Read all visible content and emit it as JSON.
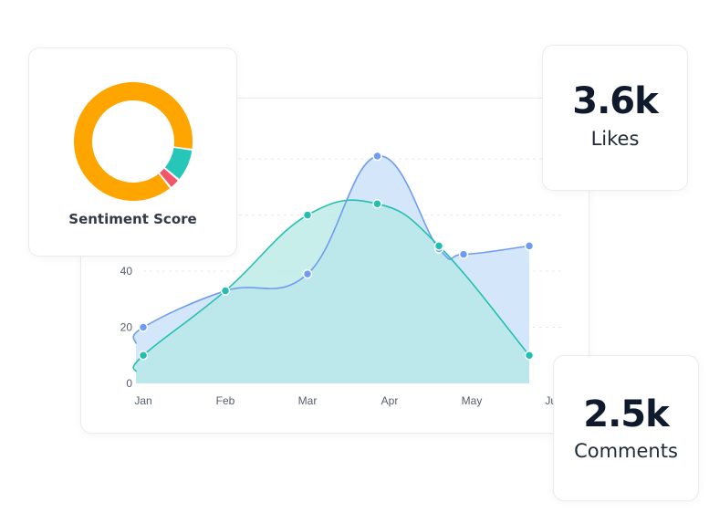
{
  "sentiment": {
    "title": "Sentiment Score",
    "segments": [
      {
        "value": 88,
        "color": "#ffa500"
      },
      {
        "value": 9,
        "color": "#26c6b9"
      },
      {
        "value": 3,
        "color": "#f2566b"
      }
    ]
  },
  "likes": {
    "value": "3.6k",
    "label": "Likes"
  },
  "comments": {
    "value": "2.5k",
    "label": "Comments"
  },
  "chart_data": {
    "type": "area",
    "categories": [
      "Jan",
      "Feb",
      "Mar",
      "Apr",
      "May",
      "Jun"
    ],
    "yticks": [
      "0",
      "20",
      "40"
    ],
    "ylim": [
      0,
      95
    ],
    "grid": true,
    "series": [
      {
        "color": "#6f9cf2",
        "fill": "#cfe3f8",
        "points": [
          [
            0,
            20
          ],
          [
            1,
            33
          ],
          [
            2,
            39
          ],
          [
            2.85,
            81
          ],
          [
            3.6,
            48
          ],
          [
            3.9,
            46
          ],
          [
            4.7,
            49
          ]
        ]
      },
      {
        "color": "#22bfb0",
        "fill": "#b6e8e6",
        "points": [
          [
            0,
            10
          ],
          [
            1,
            33
          ],
          [
            2,
            60
          ],
          [
            2.85,
            64
          ],
          [
            3.6,
            49
          ],
          [
            4.7,
            10
          ]
        ]
      }
    ]
  }
}
